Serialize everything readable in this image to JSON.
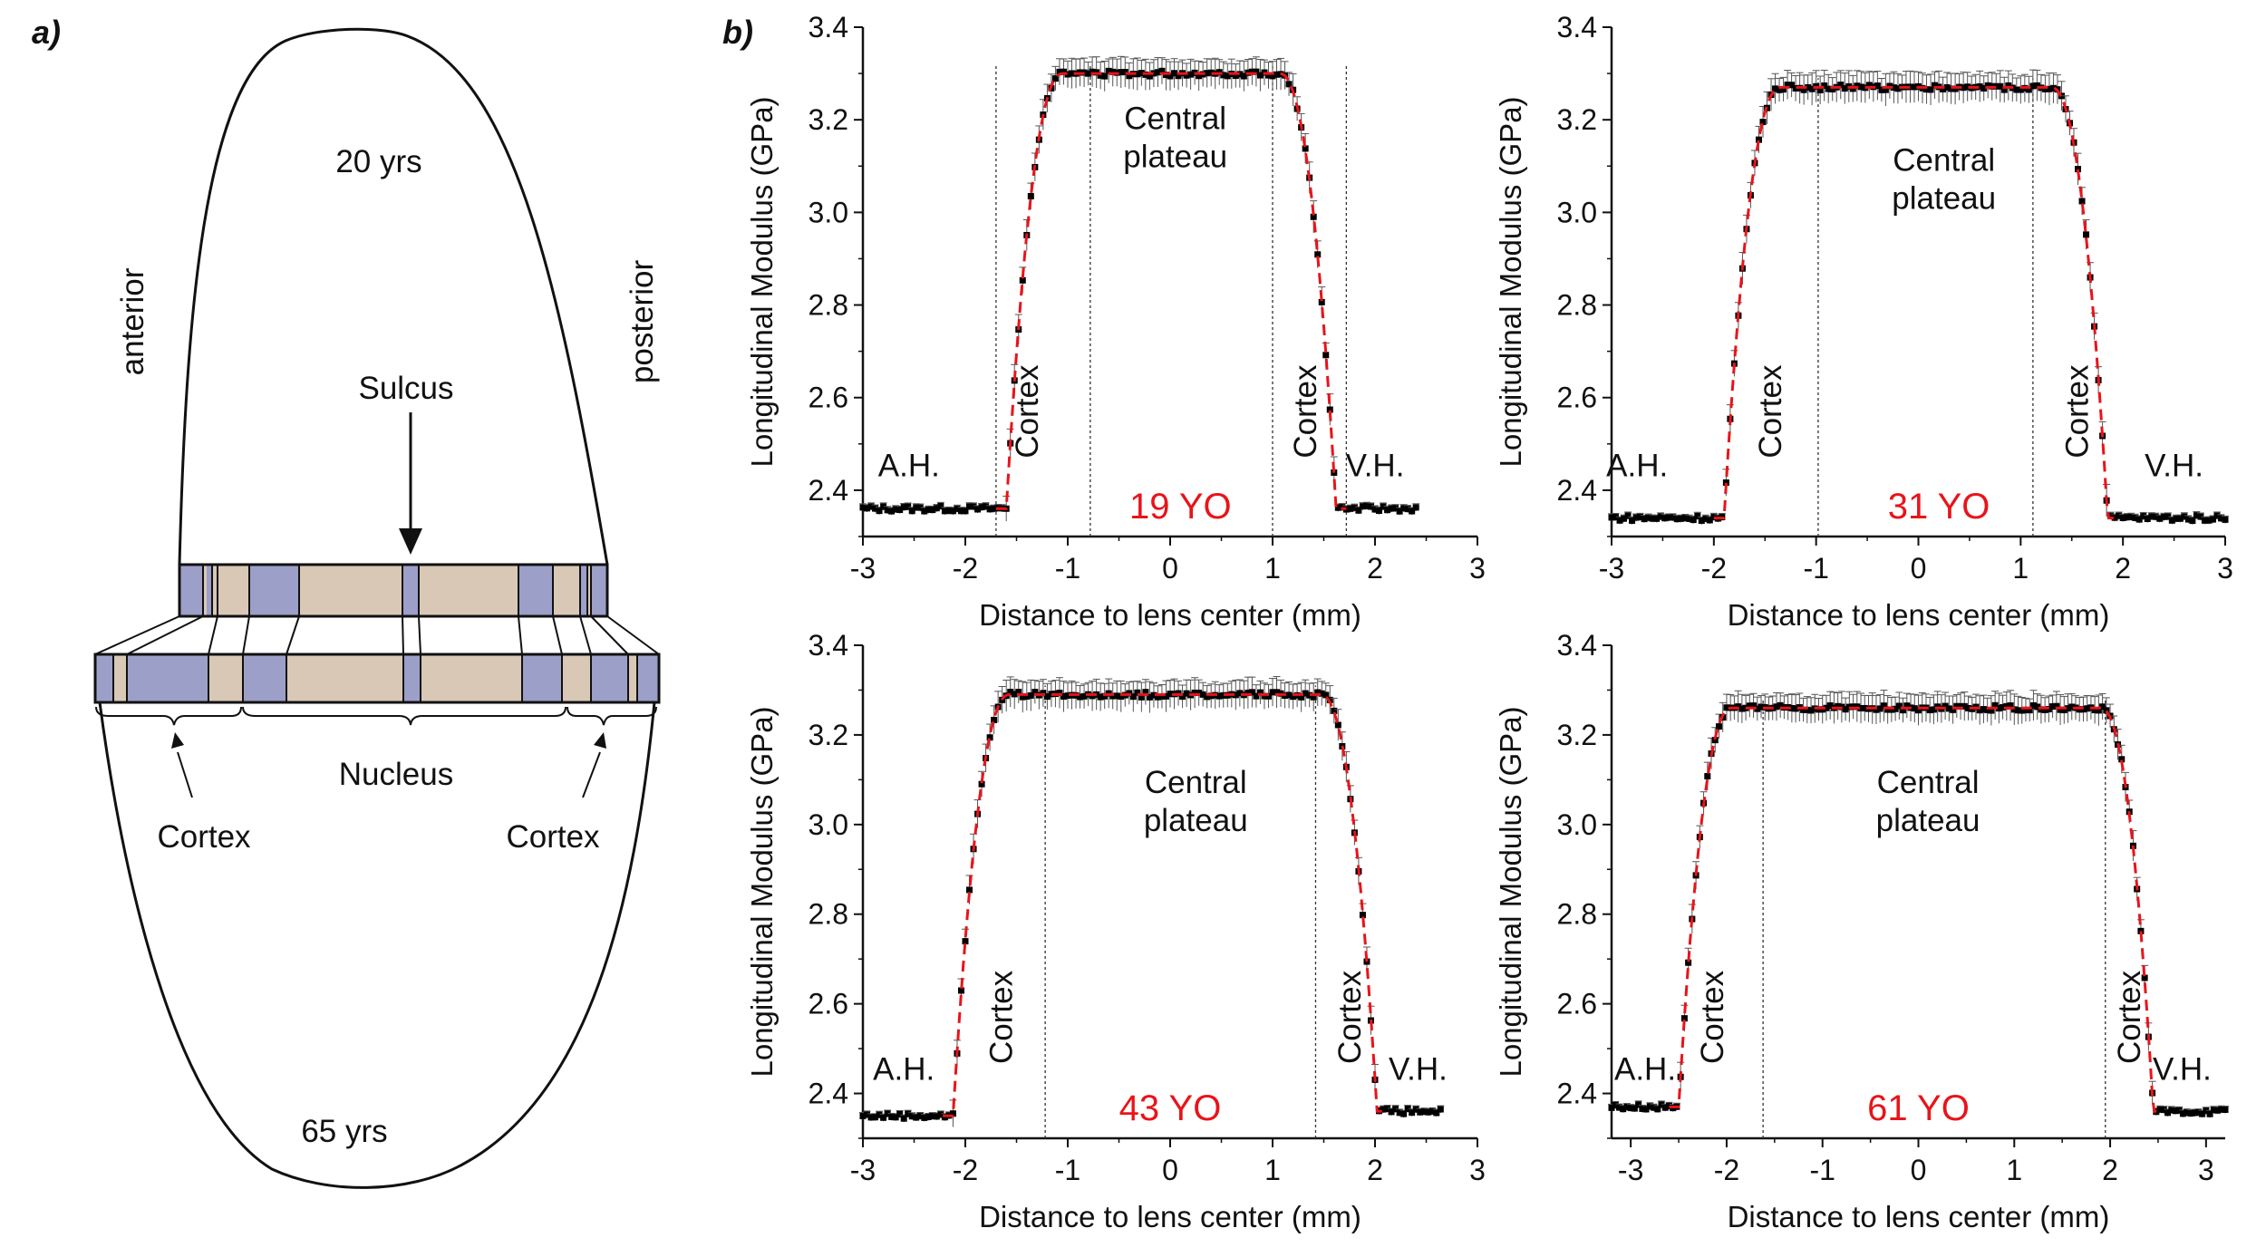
{
  "figure": {
    "panel_a_label": "a)",
    "panel_b_label": "b)"
  },
  "diagram": {
    "top_label": "20 yrs",
    "bottom_label": "65 yrs",
    "left_label": "anterior",
    "right_label": "posterior",
    "sulcus_label": "Sulcus",
    "nucleus_label": "Nucleus",
    "cortex_left_label": "Cortex",
    "cortex_right_label": "Cortex",
    "colors": {
      "nucleus": "#d9c8b6",
      "cortex": "#9c9fc8",
      "outline": "#111111"
    }
  },
  "chart_data": [
    {
      "type": "line",
      "age_label": "19 YO",
      "xlabel": "Distance to lens center (mm)",
      "ylabel": "Longitudinal Modulus (GPa)",
      "xlim": [
        -3,
        3
      ],
      "ylim": [
        2.3,
        3.4
      ],
      "xticks": [
        -3,
        -2,
        -1,
        0,
        1,
        2,
        3
      ],
      "yticks": [
        2.4,
        2.6,
        2.8,
        3.0,
        3.2,
        3.4
      ],
      "x_range": [
        -3.0,
        2.4
      ],
      "baseline_left": 2.36,
      "baseline_right": 2.36,
      "plateau": 3.3,
      "edge_left": -1.6,
      "edge_right": 1.62,
      "region_lines": [
        -1.7,
        -0.78,
        1.0,
        1.72
      ],
      "annotations": {
        "left_humor": "A.H.",
        "right_humor": "V.H.",
        "cortex_left": "Cortex",
        "cortex_right": "Cortex",
        "plateau_line1": "Central",
        "plateau_line2": "plateau"
      },
      "series": [
        {
          "values_desc": "measured",
          "color": "#000000"
        },
        {
          "values_desc": "fit",
          "color": "#e8141a"
        }
      ]
    },
    {
      "type": "line",
      "age_label": "31 YO",
      "xlabel": "Distance to lens center (mm)",
      "ylabel": "Longitudinal Modulus (GPa)",
      "xlim": [
        -3,
        3
      ],
      "ylim": [
        2.3,
        3.4
      ],
      "xticks": [
        -3,
        -2,
        -1,
        0,
        1,
        2,
        3
      ],
      "yticks": [
        2.4,
        2.6,
        2.8,
        3.0,
        3.2,
        3.4
      ],
      "x_range": [
        -3.0,
        3.0
      ],
      "baseline_left": 2.34,
      "baseline_right": 2.34,
      "plateau": 3.27,
      "edge_left": -1.9,
      "edge_right": 1.85,
      "region_lines": [
        -0.98,
        1.12
      ],
      "annotations": {
        "left_humor": "A.H.",
        "right_humor": "V.H.",
        "cortex_left": "Cortex",
        "cortex_right": "Cortex",
        "plateau_line1": "Central",
        "plateau_line2": "plateau"
      }
    },
    {
      "type": "line",
      "age_label": "43 YO",
      "xlabel": "Distance to lens center (mm)",
      "ylabel": "Longitudinal Modulus (GPa)",
      "xlim": [
        -3,
        3
      ],
      "ylim": [
        2.3,
        3.4
      ],
      "xticks": [
        -3,
        -2,
        -1,
        0,
        1,
        2,
        3
      ],
      "yticks": [
        2.4,
        2.6,
        2.8,
        3.0,
        3.2,
        3.4
      ],
      "x_range": [
        -3.0,
        2.65
      ],
      "baseline_left": 2.35,
      "baseline_right": 2.36,
      "plateau": 3.29,
      "edge_left": -2.12,
      "edge_right": 2.02,
      "region_lines": [
        -1.22,
        1.42
      ],
      "annotations": {
        "left_humor": "A.H.",
        "right_humor": "V.H.",
        "cortex_left": "Cortex",
        "cortex_right": "Cortex",
        "plateau_line1": "Central",
        "plateau_line2": "plateau"
      }
    },
    {
      "type": "line",
      "age_label": "61 YO",
      "xlabel": "Distance to lens center (mm)",
      "ylabel": "Longitudinal Modulus (GPa)",
      "xlim": [
        -3.2,
        3.2
      ],
      "ylim": [
        2.3,
        3.4
      ],
      "xticks": [
        -3,
        -2,
        -1,
        0,
        1,
        2,
        3
      ],
      "yticks": [
        2.4,
        2.6,
        2.8,
        3.0,
        3.2,
        3.4
      ],
      "x_range": [
        -3.2,
        3.2
      ],
      "baseline_left": 2.37,
      "baseline_right": 2.36,
      "plateau": 3.26,
      "edge_left": -2.5,
      "edge_right": 2.45,
      "region_lines": [
        -1.62,
        1.95
      ],
      "annotations": {
        "left_humor": "A.H.",
        "right_humor": "V.H.",
        "cortex_left": "Cortex",
        "cortex_right": "Cortex",
        "plateau_line1": "Central",
        "plateau_line2": "plateau"
      }
    }
  ]
}
